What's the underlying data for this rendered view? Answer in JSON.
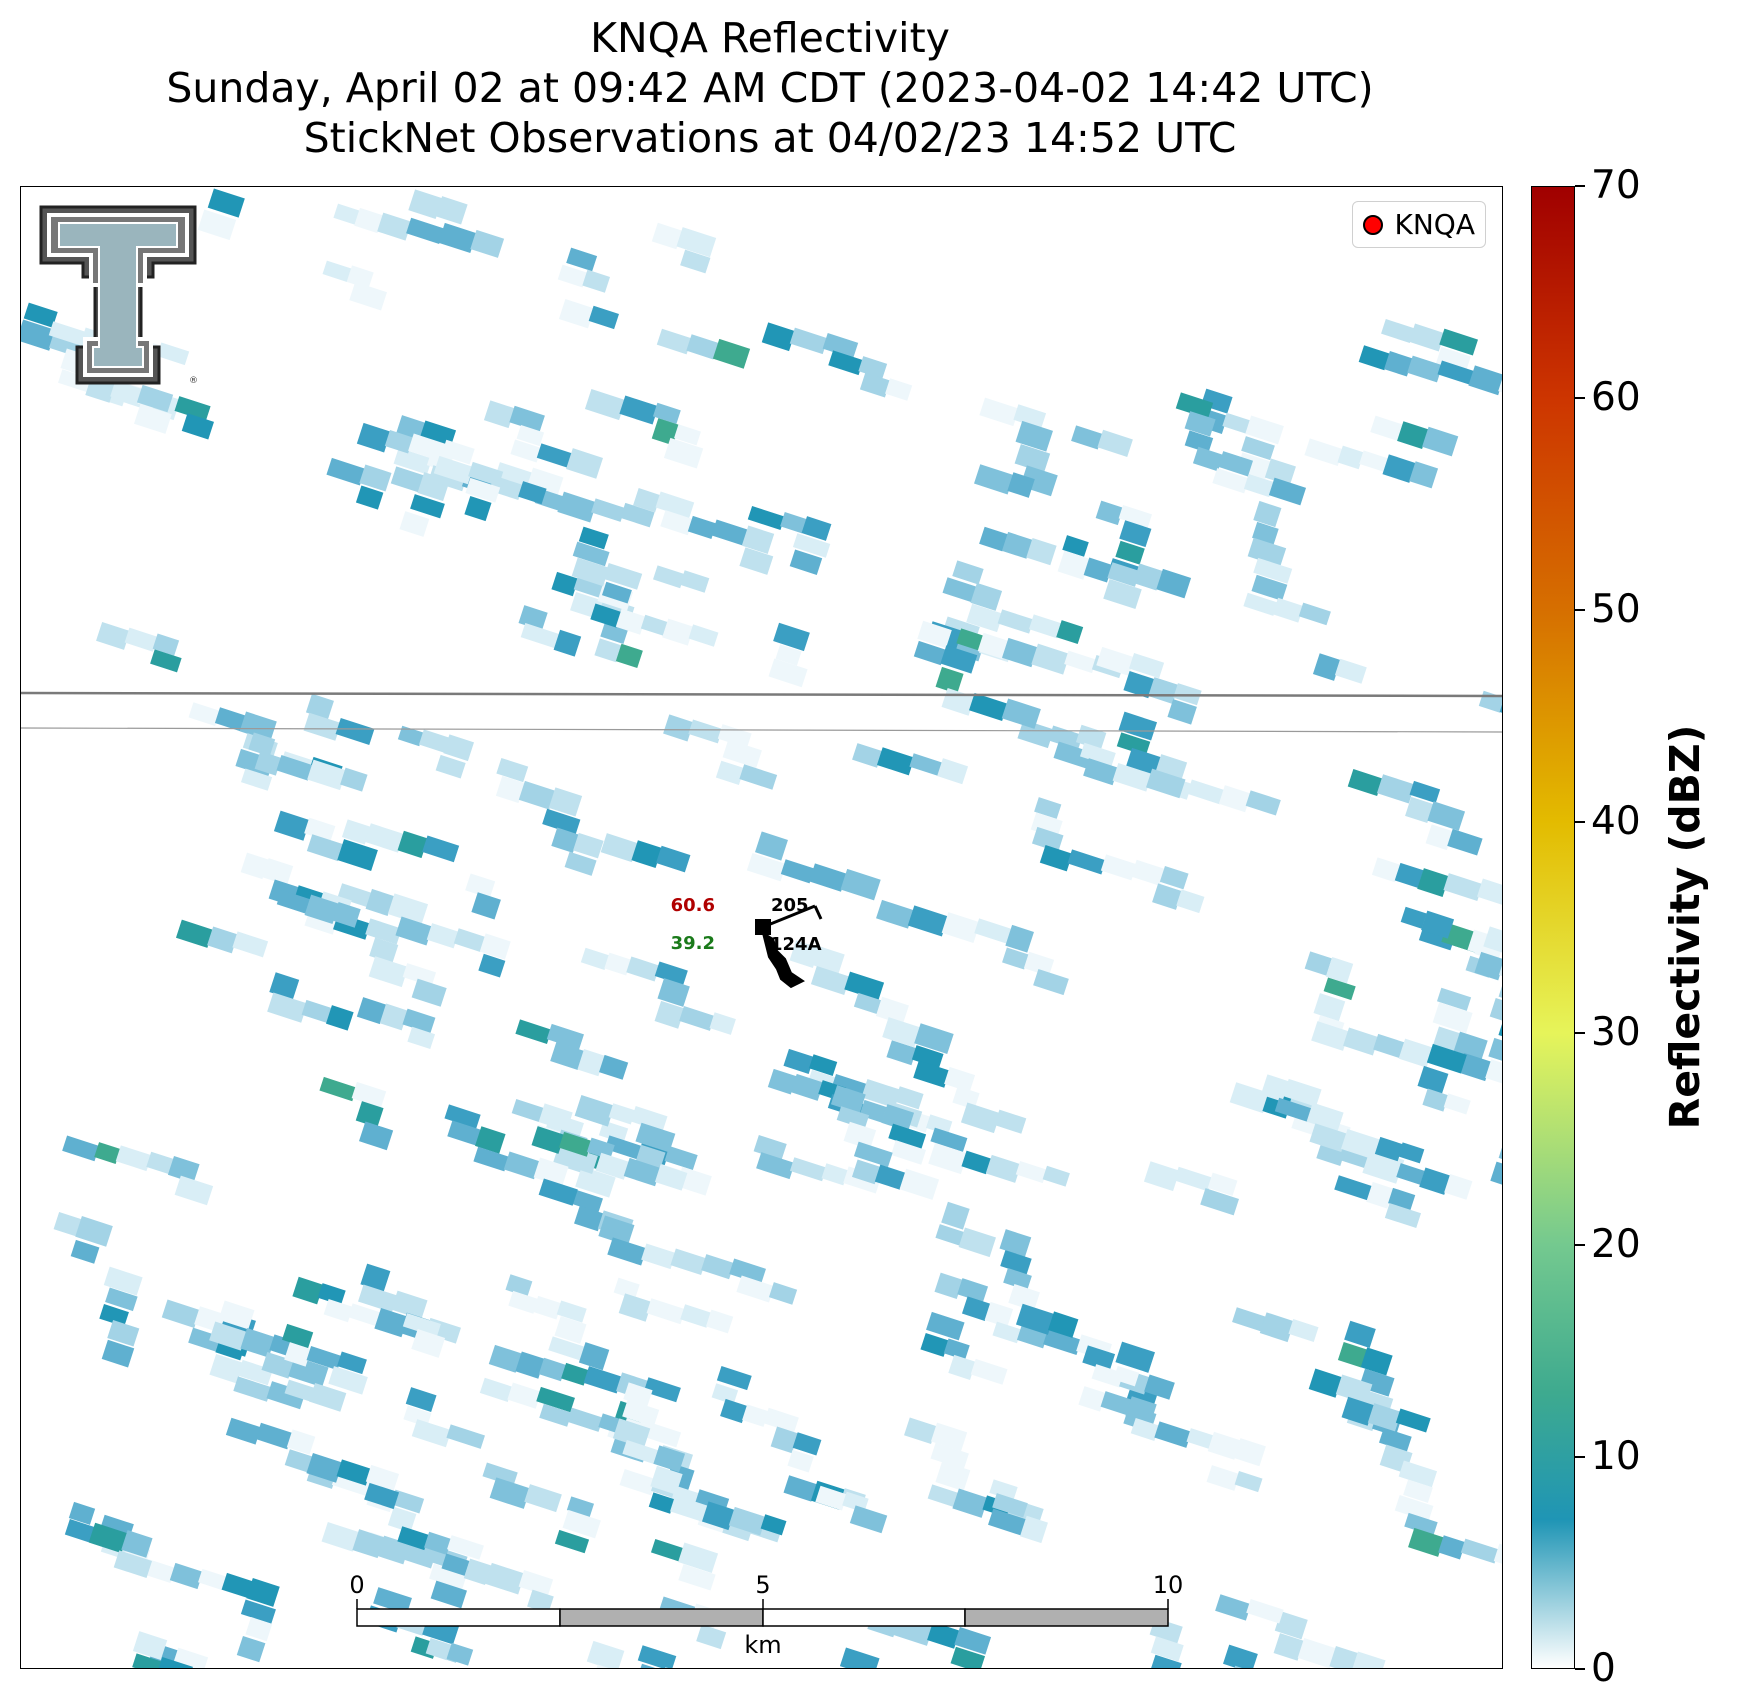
{
  "title": {
    "line1": "KNQA Reflectivity",
    "line2": "Sunday, April 02 at 09:42 AM CDT (2023-04-02 14:42 UTC)",
    "line3": "StickNet Observations at 04/02/23 14:52 UTC"
  },
  "legend": {
    "label": "KNQA",
    "marker_color": "#ff0000"
  },
  "colorbar": {
    "label": "Reflectivity (dBZ)",
    "ticks": [
      "0",
      "10",
      "20",
      "30",
      "40",
      "50",
      "60",
      "70"
    ],
    "range": [
      0,
      70
    ],
    "stops": [
      {
        "v": 0,
        "c": "#ffffff"
      },
      {
        "v": 7,
        "c": "#1f95b5"
      },
      {
        "v": 13,
        "c": "#3eaa8f"
      },
      {
        "v": 20,
        "c": "#74c98f"
      },
      {
        "v": 30,
        "c": "#e6f45a"
      },
      {
        "v": 40,
        "c": "#e3bb00"
      },
      {
        "v": 50,
        "c": "#d66f00"
      },
      {
        "v": 60,
        "c": "#cd3500"
      },
      {
        "v": 70,
        "c": "#a00000"
      }
    ]
  },
  "station": {
    "temperature": "60.6",
    "dewpoint": "39.2",
    "pressure": "205",
    "id": "124A",
    "temperature_color": "#b00000",
    "dewpoint_color": "#1a7a1a"
  },
  "scalebar": {
    "labels": [
      "0",
      "5",
      "10"
    ],
    "unit": "km",
    "max_km": 10
  },
  "logo": {
    "icon": "texas-tech-double-t-logo"
  }
}
